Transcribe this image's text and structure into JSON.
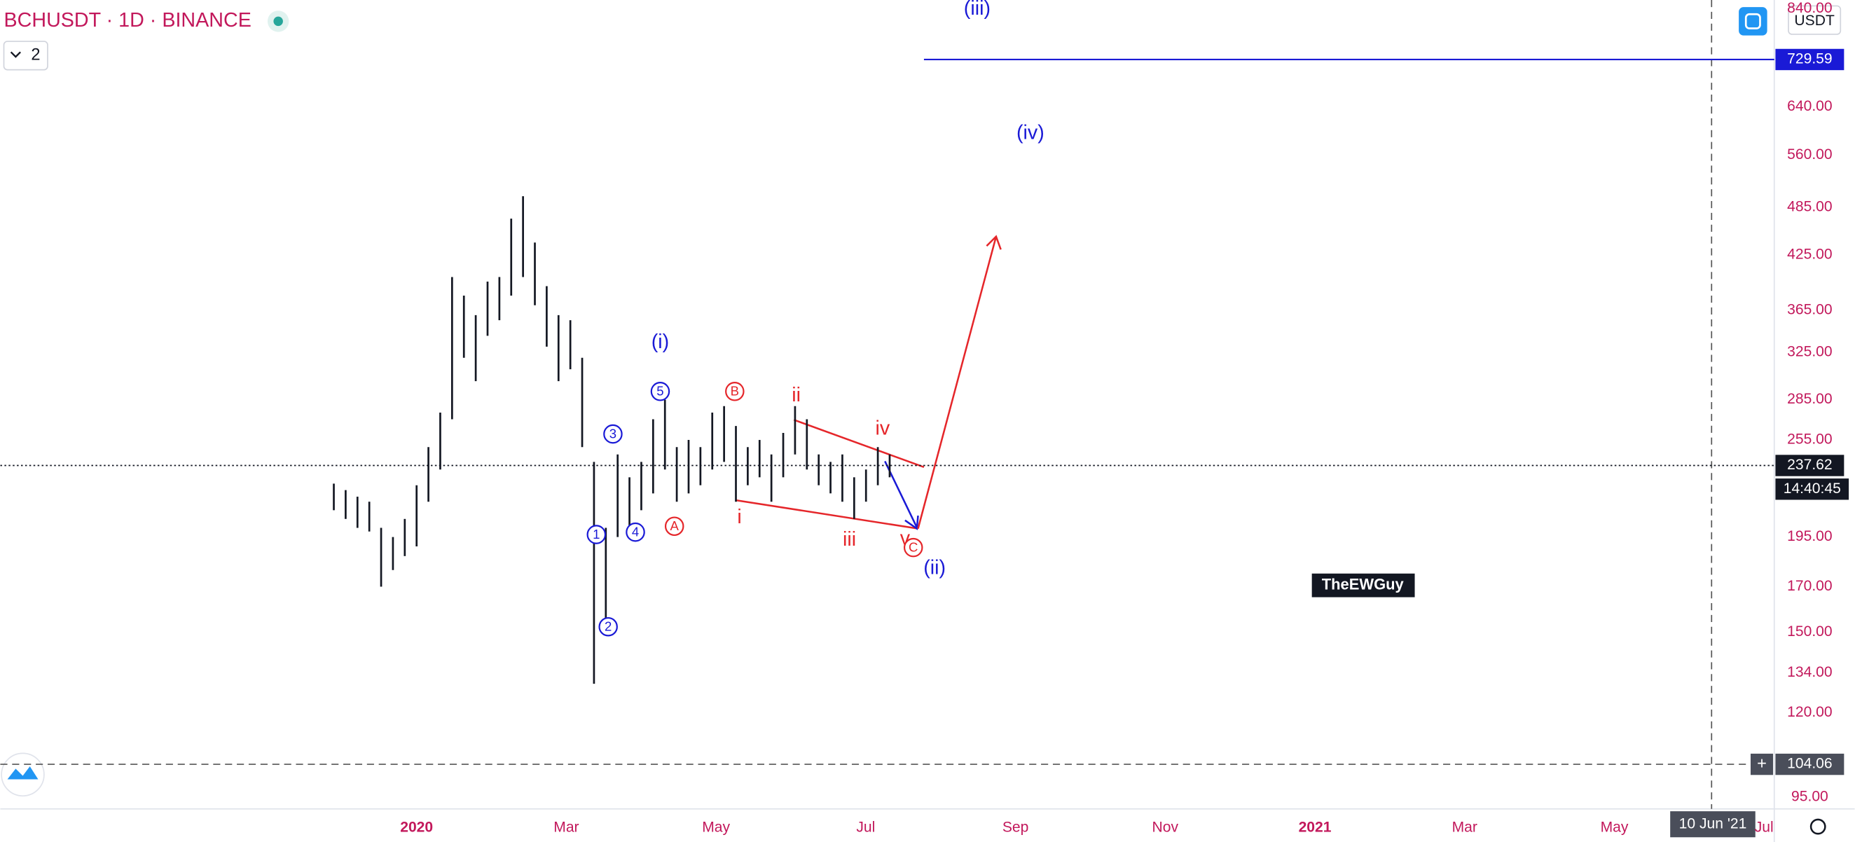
{
  "header": {
    "symbol": "BCHUSDT · 1D · BINANCE",
    "indicator_count": "2",
    "currency": "USDT"
  },
  "watermark": "TheEWGuy",
  "chart_data": {
    "type": "ohlc",
    "log_scale": true,
    "color": "#131722",
    "ylim": [
      92,
      860
    ],
    "yticks": [
      {
        "value": 840,
        "label": "840.00"
      },
      {
        "value": 640,
        "label": "640.00"
      },
      {
        "value": 560,
        "label": "560.00"
      },
      {
        "value": 485,
        "label": "485.00"
      },
      {
        "value": 425,
        "label": "425.00"
      },
      {
        "value": 365,
        "label": "365.00"
      },
      {
        "value": 325,
        "label": "325.00"
      },
      {
        "value": 285,
        "label": "285.00"
      },
      {
        "value": 255,
        "label": "255.00"
      },
      {
        "value": 195,
        "label": "195.00"
      },
      {
        "value": 170,
        "label": "170.00"
      },
      {
        "value": 150,
        "label": "150.00"
      },
      {
        "value": 134,
        "label": "134.00"
      },
      {
        "value": 120,
        "label": "120.00"
      },
      {
        "value": 95,
        "label": "95.00"
      }
    ],
    "x_labels": [
      "2020",
      "Mar",
      "May",
      "Jul",
      "Sep",
      "Nov",
      "2021",
      "Mar",
      "May",
      "Jul"
    ],
    "high": [
      226,
      222,
      218,
      215,
      200,
      195,
      205,
      225,
      250,
      275,
      400,
      380,
      360,
      395,
      400,
      470,
      500,
      440,
      390,
      360,
      355,
      320,
      240,
      200,
      245,
      230,
      240,
      270,
      285,
      250,
      255,
      250,
      275,
      280,
      265,
      250,
      255,
      245,
      260,
      280,
      270,
      245,
      240,
      245,
      230,
      235,
      250,
      245
    ],
    "low": [
      210,
      205,
      200,
      198,
      170,
      178,
      185,
      190,
      215,
      235,
      270,
      320,
      300,
      340,
      355,
      380,
      400,
      370,
      330,
      300,
      310,
      250,
      130,
      150,
      195,
      200,
      210,
      220,
      235,
      215,
      220,
      225,
      235,
      240,
      215,
      225,
      230,
      215,
      230,
      245,
      235,
      225,
      220,
      215,
      205,
      215,
      225,
      230
    ],
    "target_level": 729.59,
    "last_price": 237.62,
    "countdown": "14:40:45",
    "crosshair_price": 104.06,
    "crosshair_date": "10 Jun '21",
    "annotations": [
      {
        "text": "(iii)",
        "color": "#1a1ad6",
        "circled": false
      },
      {
        "text": "(iv)",
        "color": "#1a1ad6",
        "circled": false
      },
      {
        "text": "(i)",
        "color": "#1a1ad6",
        "circled": false
      },
      {
        "text": "(ii)",
        "color": "#1a1ad6",
        "circled": false
      },
      {
        "text": "5",
        "color": "#1a1ad6",
        "circled": true
      },
      {
        "text": "3",
        "color": "#1a1ad6",
        "circled": true
      },
      {
        "text": "4",
        "color": "#1a1ad6",
        "circled": true
      },
      {
        "text": "1",
        "color": "#1a1ad6",
        "circled": true
      },
      {
        "text": "2",
        "color": "#1a1ad6",
        "circled": true
      },
      {
        "text": "ii",
        "color": "#e5262a",
        "circled": false
      },
      {
        "text": "iv",
        "color": "#e5262a",
        "circled": false
      },
      {
        "text": "i",
        "color": "#e5262a",
        "circled": false
      },
      {
        "text": "iii",
        "color": "#e5262a",
        "circled": false
      },
      {
        "text": "v",
        "color": "#e5262a",
        "circled": false
      },
      {
        "text": "B",
        "color": "#e5262a",
        "circled": true
      },
      {
        "text": "A",
        "color": "#e5262a",
        "circled": true
      },
      {
        "text": "C",
        "color": "#e5262a",
        "circled": true
      }
    ]
  }
}
